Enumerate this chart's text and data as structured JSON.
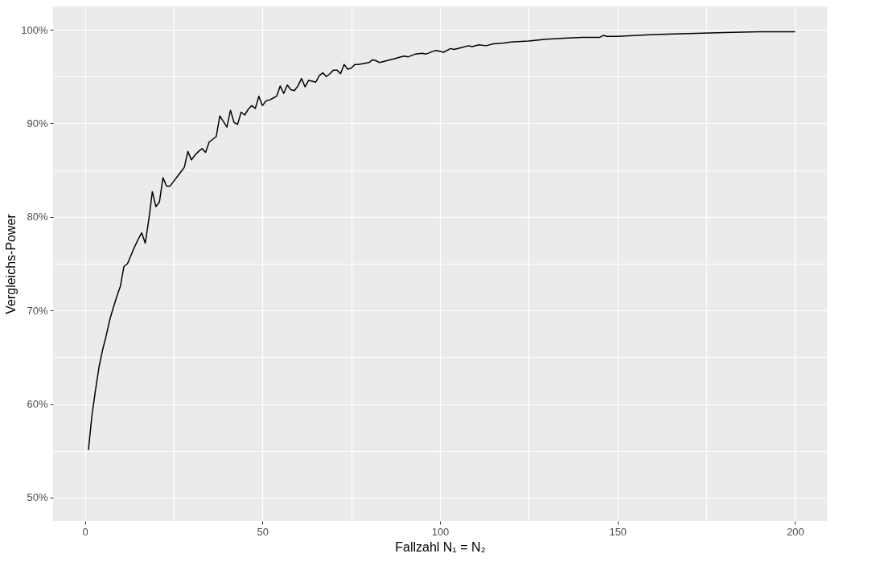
{
  "chart_data": {
    "type": "line",
    "xlabel": "Fallzahl N₁ = N₂",
    "ylabel": "Vergleichs-Power",
    "xlim": [
      -8.95,
      208.95
    ],
    "ylim": [
      47.5,
      102.5
    ],
    "xticks": [
      0,
      {
        "value": 25,
        "label": null
      },
      50,
      {
        "value": 75,
        "label": null
      },
      100,
      {
        "value": 125,
        "label": null
      },
      150,
      {
        "value": 175,
        "label": null
      },
      200
    ],
    "yticks": [
      {
        "value": 50,
        "label": "50%"
      },
      {
        "value": 55,
        "label": null
      },
      {
        "value": 60,
        "label": "60%"
      },
      {
        "value": 65,
        "label": null
      },
      {
        "value": 70,
        "label": "70%"
      },
      {
        "value": 75,
        "label": null
      },
      {
        "value": 80,
        "label": "80%"
      },
      {
        "value": 85,
        "label": null
      },
      {
        "value": 90,
        "label": "90%"
      },
      {
        "value": 95,
        "label": null
      },
      {
        "value": 100,
        "label": "100%"
      }
    ],
    "grid": true,
    "legend": false,
    "marker": "none",
    "line_style": "solid",
    "series": [
      {
        "color": "#000000",
        "x": [
          1,
          2,
          3,
          4,
          5,
          6,
          7,
          8,
          9,
          10,
          11,
          12,
          13,
          14,
          15,
          16,
          17,
          18,
          19,
          20,
          21,
          22,
          23,
          24,
          25,
          26,
          27,
          28,
          29,
          30,
          31,
          32,
          33,
          34,
          35,
          36,
          37,
          38,
          39,
          40,
          41,
          42,
          43,
          44,
          45,
          46,
          47,
          48,
          49,
          50,
          51,
          52,
          53,
          54,
          55,
          56,
          57,
          58,
          59,
          60,
          61,
          62,
          63,
          64,
          65,
          66,
          67,
          68,
          69,
          70,
          71,
          72,
          73,
          74,
          75,
          76,
          77,
          80,
          81,
          82,
          83,
          85,
          87,
          89,
          90,
          91,
          93,
          95,
          96,
          98,
          99,
          101,
          103,
          104,
          106,
          108,
          109,
          111,
          113,
          115,
          118,
          120,
          125,
          130,
          135,
          140,
          145,
          146,
          147,
          150,
          160,
          170,
          180,
          190,
          200
        ],
        "values": [
          55.1,
          58.8,
          61.5,
          64.0,
          65.8,
          67.3,
          69.0,
          70.3,
          71.5,
          72.6,
          74.7,
          75.0,
          75.9,
          76.8,
          77.6,
          78.3,
          77.2,
          79.7,
          82.7,
          81.1,
          81.6,
          84.2,
          83.3,
          83.3,
          83.8,
          84.3,
          84.8,
          85.3,
          87.0,
          86.1,
          86.6,
          87.0,
          87.3,
          86.9,
          88.0,
          88.3,
          88.6,
          90.8,
          90.2,
          89.6,
          91.4,
          90.1,
          89.9,
          91.2,
          90.9,
          91.5,
          91.9,
          91.6,
          92.9,
          91.9,
          92.4,
          92.5,
          92.7,
          92.9,
          94.0,
          93.2,
          94.1,
          93.6,
          93.5,
          94.0,
          94.8,
          93.9,
          94.6,
          94.5,
          94.4,
          95.1,
          95.4,
          95.0,
          95.3,
          95.7,
          95.7,
          95.3,
          96.3,
          95.8,
          95.9,
          96.3,
          96.3,
          96.5,
          96.8,
          96.7,
          96.5,
          96.7,
          96.9,
          97.1,
          97.2,
          97.1,
          97.4,
          97.5,
          97.4,
          97.7,
          97.8,
          97.6,
          98.0,
          97.9,
          98.1,
          98.3,
          98.2,
          98.4,
          98.3,
          98.5,
          98.6,
          98.7,
          98.8,
          99.0,
          99.1,
          99.2,
          99.2,
          99.4,
          99.3,
          99.3,
          99.5,
          99.6,
          99.7,
          99.8,
          99.8
        ]
      }
    ]
  }
}
